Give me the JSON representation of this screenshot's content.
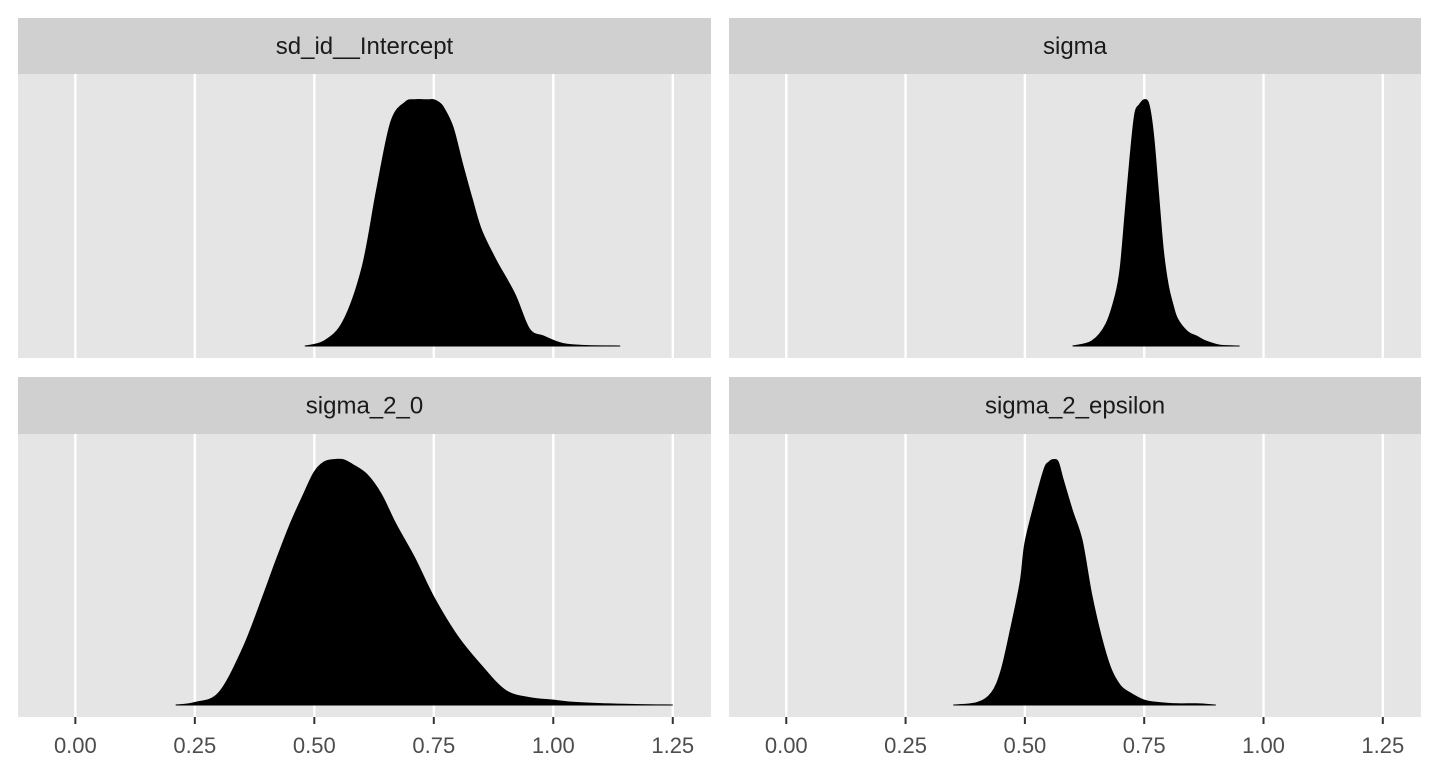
{
  "chart_data": {
    "type": "area",
    "subtype": "density-facets",
    "facet_layout": {
      "rows": 2,
      "cols": 2
    },
    "x_axis": {
      "range": [
        -0.12,
        1.33
      ],
      "ticks": [
        0.0,
        0.25,
        0.5,
        0.75,
        1.0,
        1.25
      ],
      "tick_labels": [
        "0.00",
        "0.25",
        "0.50",
        "0.75",
        "1.00",
        "1.25"
      ],
      "scales": "fixed"
    },
    "y_axis": {
      "shown": false,
      "range": [
        0,
        1.08
      ]
    },
    "grid": "vertical-major",
    "legend": "none",
    "colors": {
      "panel_background": "#e5e5e5",
      "strip_background": "#d0d0d0",
      "grid": "#ffffff",
      "fill": "#000000",
      "tick": "#333333"
    },
    "panels": [
      {
        "label": "sd_id__Intercept",
        "row": 0,
        "col": 0,
        "x": [
          0.48,
          0.52,
          0.56,
          0.6,
          0.63,
          0.66,
          0.69,
          0.71,
          0.73,
          0.74,
          0.75,
          0.76,
          0.77,
          0.79,
          0.81,
          0.83,
          0.85,
          0.88,
          0.92,
          0.95,
          0.98,
          1.02,
          1.07,
          1.14
        ],
        "density": [
          0.0,
          0.02,
          0.1,
          0.32,
          0.63,
          0.91,
          0.99,
          1.0,
          1.0,
          1.0,
          1.0,
          0.99,
          0.97,
          0.89,
          0.74,
          0.6,
          0.47,
          0.35,
          0.21,
          0.07,
          0.04,
          0.01,
          0.002,
          0.0
        ]
      },
      {
        "label": "sigma",
        "row": 0,
        "col": 1,
        "x": [
          0.6,
          0.64,
          0.67,
          0.69,
          0.7,
          0.71,
          0.72,
          0.73,
          0.74,
          0.75,
          0.76,
          0.77,
          0.78,
          0.79,
          0.8,
          0.81,
          0.82,
          0.84,
          0.86,
          0.88,
          0.91,
          0.95
        ],
        "density": [
          0.0,
          0.02,
          0.09,
          0.21,
          0.32,
          0.54,
          0.76,
          0.94,
          0.98,
          1.0,
          0.98,
          0.85,
          0.62,
          0.39,
          0.25,
          0.17,
          0.11,
          0.06,
          0.04,
          0.02,
          0.003,
          0.0
        ]
      },
      {
        "label": "sigma_2_0",
        "row": 1,
        "col": 0,
        "x": [
          0.21,
          0.25,
          0.3,
          0.35,
          0.39,
          0.42,
          0.45,
          0.48,
          0.5,
          0.52,
          0.54,
          0.56,
          0.58,
          0.61,
          0.64,
          0.67,
          0.71,
          0.75,
          0.8,
          0.85,
          0.9,
          0.95,
          1.0,
          1.05,
          1.15,
          1.25
        ],
        "density": [
          0.0,
          0.01,
          0.05,
          0.23,
          0.43,
          0.59,
          0.74,
          0.87,
          0.95,
          0.99,
          1.0,
          1.0,
          0.98,
          0.94,
          0.86,
          0.74,
          0.6,
          0.44,
          0.28,
          0.16,
          0.06,
          0.03,
          0.02,
          0.01,
          0.003,
          0.0
        ]
      },
      {
        "label": "sigma_2_epsilon",
        "row": 1,
        "col": 1,
        "x": [
          0.35,
          0.4,
          0.43,
          0.45,
          0.47,
          0.49,
          0.5,
          0.52,
          0.54,
          0.55,
          0.56,
          0.57,
          0.58,
          0.6,
          0.62,
          0.64,
          0.66,
          0.68,
          0.7,
          0.72,
          0.75,
          0.78,
          0.82,
          0.86,
          0.9
        ],
        "density": [
          0.0,
          0.01,
          0.05,
          0.14,
          0.31,
          0.5,
          0.66,
          0.82,
          0.96,
          0.99,
          1.0,
          0.99,
          0.92,
          0.79,
          0.67,
          0.45,
          0.28,
          0.15,
          0.08,
          0.05,
          0.02,
          0.01,
          0.005,
          0.005,
          0.0
        ]
      }
    ]
  }
}
